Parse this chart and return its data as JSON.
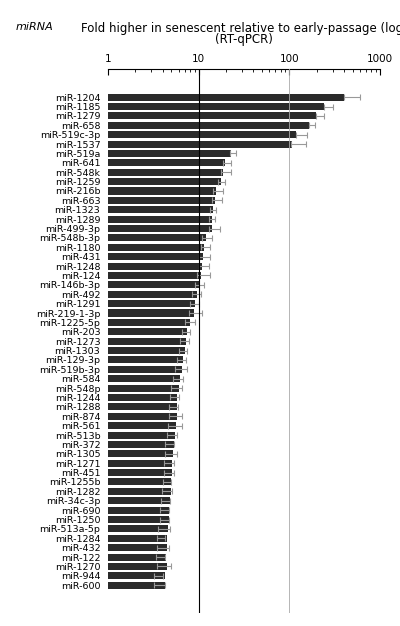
{
  "title_line1": "Fold higher in senescent relative to early-passage (log)",
  "title_line2": "(RT-qPCR)",
  "ylabel_text": "miRNA",
  "mirnas": [
    "miR-1204",
    "miR-1185",
    "miR-1279",
    "miR-658",
    "miR-519c-3p",
    "miR-1537",
    "miR-519a",
    "miR-641",
    "miR-548k",
    "miR-1259",
    "miR-216b",
    "miR-663",
    "miR-1323",
    "miR-1289",
    "miR-499-3p",
    "miR-548b-3p",
    "miR-1180",
    "miR-431",
    "miR-1248",
    "miR-124",
    "miR-146b-3p",
    "miR-492",
    "miR-1291",
    "miR-219-1-3p",
    "miR-1225-5p",
    "miR-203",
    "miR-1273",
    "miR-1303",
    "miR-129-3p",
    "miR-519b-3p",
    "miR-584",
    "miR-548p",
    "miR-1244",
    "miR-1288",
    "miR-874",
    "miR-561",
    "miR-513b",
    "miR-372",
    "miR-1305",
    "miR-1271",
    "miR-451",
    "miR-1255b",
    "miR-1282",
    "miR-34c-3p",
    "miR-690",
    "miR-1250",
    "miR-513a-5p",
    "miR-1284",
    "miR-432",
    "miR-122",
    "miR-1270",
    "miR-944",
    "miR-600"
  ],
  "values": [
    400,
    240,
    195,
    165,
    118,
    105,
    22,
    18.5,
    17.5,
    16.5,
    14.5,
    14,
    13.5,
    13,
    13,
    11,
    10.5,
    10.2,
    10,
    9.5,
    9.0,
    8.5,
    8.0,
    7.8,
    7.0,
    6.5,
    6.3,
    6.0,
    5.8,
    5.5,
    5.2,
    5.0,
    4.8,
    4.7,
    4.7,
    4.6,
    4.5,
    4.3,
    4.2,
    4.1,
    4.1,
    4.0,
    3.9,
    3.8,
    3.7,
    3.7,
    3.6,
    3.5,
    3.5,
    3.4,
    3.5,
    3.2,
    3.2
  ],
  "errors": [
    200,
    60,
    45,
    25,
    38,
    48,
    4,
    4,
    5,
    3,
    4,
    4,
    2,
    2,
    4,
    3,
    3,
    3,
    3,
    4,
    2.5,
    2,
    2,
    3,
    2,
    1.5,
    1.5,
    1.5,
    1.5,
    2,
    1.5,
    1.5,
    1.2,
    1.2,
    1.8,
    2.0,
    1.2,
    1.0,
    1.5,
    1.2,
    1.2,
    1.0,
    1.2,
    1.0,
    1.0,
    1.0,
    1.2,
    0.8,
    1.2,
    0.8,
    1.5,
    0.8,
    1.0
  ],
  "bar_color": "#2a2a2a",
  "error_color": "#999999",
  "xlim_log": [
    1,
    1000
  ],
  "xticks": [
    1,
    10,
    100,
    1000
  ],
  "background_color": "#ffffff",
  "title_fontsize": 8.5,
  "label_fontsize": 6.8,
  "tick_fontsize": 7.5
}
